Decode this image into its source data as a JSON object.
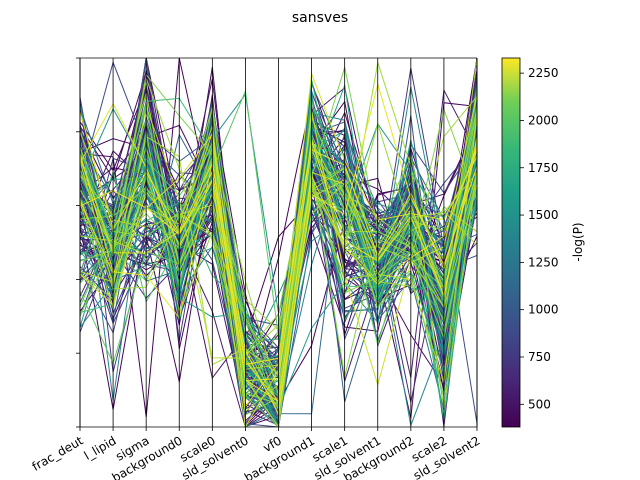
{
  "chart_data": {
    "type": "parallel_coordinates",
    "title": "sansves",
    "axes": [
      "frac_deut",
      "l_lipid",
      "sigma",
      "background0",
      "scale0",
      "sld_solvent0",
      "vf0",
      "background1",
      "scale1",
      "sld_solvent1",
      "background2",
      "scale2",
      "sld_solvent2"
    ],
    "colorbar": {
      "label": "-log(P)",
      "min": 380,
      "max": 2330,
      "ticks": [
        500,
        750,
        1000,
        1250,
        1500,
        1750,
        2000,
        2250
      ],
      "colormap": "viridis"
    },
    "line_style": "many overlapping lines colored by -log(P)"
  }
}
